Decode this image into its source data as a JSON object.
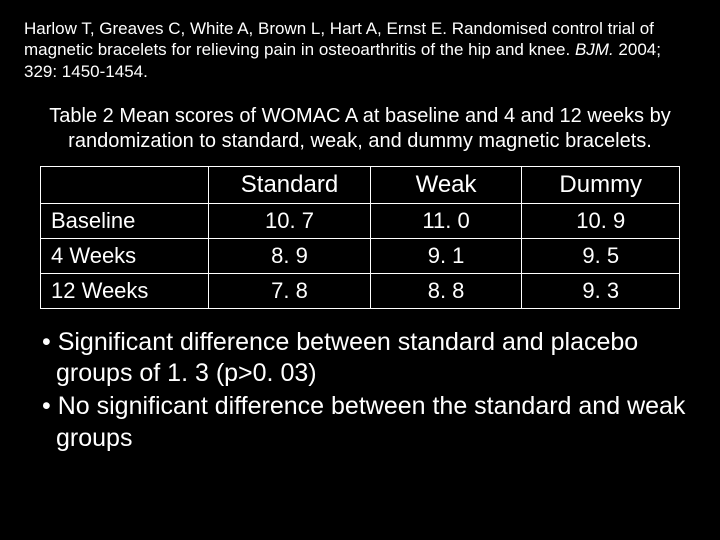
{
  "citation": {
    "authors": "Harlow T, Greaves C, White A, Brown L, Hart A, Ernst E.",
    "title": "Randomised control trial of magnetic bracelets for relieving pain in osteoarthritis of the hip and knee.",
    "journal": "BJM.",
    "ref": "2004; 329: 1450-1454."
  },
  "table": {
    "caption": "Table 2 Mean scores of WOMAC A at baseline and 4 and 12 weeks by randomization to standard, weak, and dummy magnetic bracelets.",
    "columns": [
      "Standard",
      "Weak",
      "Dummy"
    ],
    "rows": [
      {
        "label": "Baseline",
        "values": [
          "10. 7",
          "11. 0",
          "10. 9"
        ]
      },
      {
        "label": "4 Weeks",
        "values": [
          "8. 9",
          "9. 1",
          "9. 5"
        ]
      },
      {
        "label": "12 Weeks",
        "values": [
          "7. 8",
          "8. 8",
          "9. 3"
        ]
      }
    ],
    "colors": {
      "background": "#000000",
      "text": "#ffffff",
      "border": "#ffffff"
    },
    "font": {
      "header_size_pt": 24,
      "body_size_pt": 22,
      "weight": "normal"
    }
  },
  "bullets": [
    "Significant difference between standard and placebo groups of 1. 3 (p>0. 03)",
    "No significant difference between the standard and weak groups"
  ]
}
